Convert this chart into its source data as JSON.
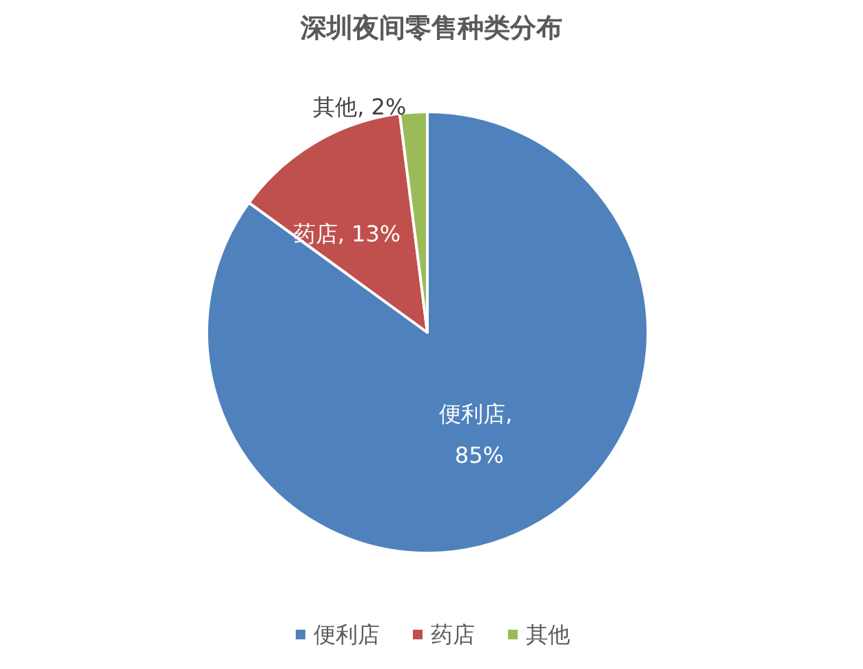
{
  "chart_data": {
    "type": "pie",
    "title": "深圳夜间零售种类分布",
    "categories": [
      "便利店",
      "药店",
      "其他"
    ],
    "values": [
      85,
      13,
      2
    ],
    "colors": [
      "#4f81bd",
      "#c0504d",
      "#9bbb59"
    ],
    "value_labels": [
      "便利店, 85%",
      "药店, 13%",
      "其他, 2%"
    ],
    "legend": "bottom"
  }
}
